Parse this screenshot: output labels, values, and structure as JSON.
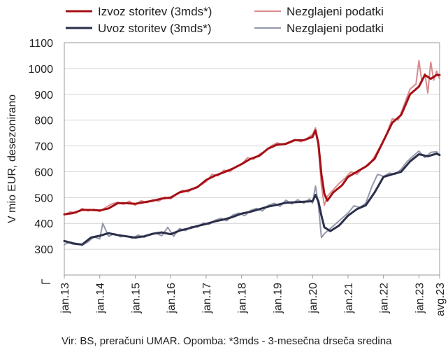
{
  "chart_data": {
    "type": "line",
    "ylabel": "V mio EUR, desezonirano",
    "xlabel": "",
    "ylim": [
      200,
      1100
    ],
    "yticks": [
      1100,
      1000,
      900,
      800,
      700,
      600,
      500,
      400,
      300
    ],
    "x_start": "2013-01",
    "x_end": "2023-08",
    "xticks": [
      {
        "label": "jan.13",
        "date": "2013-01"
      },
      {
        "label": "jan.14",
        "date": "2014-01"
      },
      {
        "label": "jan.15",
        "date": "2015-01"
      },
      {
        "label": "jan.16",
        "date": "2016-01"
      },
      {
        "label": "jan.17",
        "date": "2017-01"
      },
      {
        "label": "jan.18",
        "date": "2018-01"
      },
      {
        "label": "jan.19",
        "date": "2019-01"
      },
      {
        "label": "jan.20",
        "date": "2020-01"
      },
      {
        "label": "jan.21",
        "date": "2021-01"
      },
      {
        "label": "jan.22",
        "date": "2022-01"
      },
      {
        "label": "jan.23",
        "date": "2023-01"
      },
      {
        "label": "avg.23",
        "date": "2023-08"
      }
    ],
    "grid": true,
    "legend_position": "top",
    "source_note": "Vir: BS, preračuni UMAR. Opomba: *3mds - 3-mesečna drseča sredina",
    "series": [
      {
        "name": "Izvoz storitev (3mds*)",
        "color": "#a50f15",
        "width": 3,
        "points": [
          [
            "2013-01",
            435
          ],
          [
            "2013-04",
            440
          ],
          [
            "2013-07",
            452
          ],
          [
            "2013-10",
            452
          ],
          [
            "2014-01",
            450
          ],
          [
            "2014-04",
            458
          ],
          [
            "2014-07",
            478
          ],
          [
            "2014-10",
            478
          ],
          [
            "2015-01",
            476
          ],
          [
            "2015-04",
            482
          ],
          [
            "2015-07",
            488
          ],
          [
            "2015-10",
            496
          ],
          [
            "2016-01",
            500
          ],
          [
            "2016-04",
            520
          ],
          [
            "2016-07",
            528
          ],
          [
            "2016-10",
            540
          ],
          [
            "2017-01",
            568
          ],
          [
            "2017-04",
            585
          ],
          [
            "2017-07",
            598
          ],
          [
            "2017-10",
            612
          ],
          [
            "2018-01",
            630
          ],
          [
            "2018-04",
            650
          ],
          [
            "2018-07",
            662
          ],
          [
            "2018-10",
            690
          ],
          [
            "2019-01",
            705
          ],
          [
            "2019-04",
            708
          ],
          [
            "2019-07",
            722
          ],
          [
            "2019-10",
            722
          ],
          [
            "2020-01",
            735
          ],
          [
            "2020-02",
            760
          ],
          [
            "2020-03",
            710
          ],
          [
            "2020-04",
            590
          ],
          [
            "2020-05",
            515
          ],
          [
            "2020-06",
            488
          ],
          [
            "2020-08",
            520
          ],
          [
            "2020-11",
            548
          ],
          [
            "2021-01",
            580
          ],
          [
            "2021-04",
            600
          ],
          [
            "2021-07",
            620
          ],
          [
            "2021-10",
            650
          ],
          [
            "2022-01",
            720
          ],
          [
            "2022-04",
            790
          ],
          [
            "2022-07",
            820
          ],
          [
            "2022-10",
            900
          ],
          [
            "2023-01",
            930
          ],
          [
            "2023-03",
            975
          ],
          [
            "2023-05",
            960
          ],
          [
            "2023-07",
            975
          ],
          [
            "2023-08",
            975
          ]
        ]
      },
      {
        "name": "Nezglajeni podatki",
        "color": "#d98a8c",
        "width": 2,
        "points": [
          [
            "2013-01",
            432
          ],
          [
            "2013-03",
            445
          ],
          [
            "2013-05",
            440
          ],
          [
            "2013-07",
            458
          ],
          [
            "2013-09",
            448
          ],
          [
            "2013-11",
            455
          ],
          [
            "2014-01",
            446
          ],
          [
            "2014-03",
            462
          ],
          [
            "2014-05",
            475
          ],
          [
            "2014-07",
            482
          ],
          [
            "2014-09",
            474
          ],
          [
            "2014-11",
            486
          ],
          [
            "2015-01",
            470
          ],
          [
            "2015-03",
            488
          ],
          [
            "2015-05",
            480
          ],
          [
            "2015-07",
            492
          ],
          [
            "2015-09",
            486
          ],
          [
            "2015-11",
            502
          ],
          [
            "2016-01",
            495
          ],
          [
            "2016-03",
            515
          ],
          [
            "2016-05",
            528
          ],
          [
            "2016-07",
            522
          ],
          [
            "2016-09",
            538
          ],
          [
            "2016-11",
            548
          ],
          [
            "2017-01",
            562
          ],
          [
            "2017-03",
            590
          ],
          [
            "2017-05",
            584
          ],
          [
            "2017-07",
            606
          ],
          [
            "2017-09",
            600
          ],
          [
            "2017-11",
            620
          ],
          [
            "2018-01",
            628
          ],
          [
            "2018-03",
            655
          ],
          [
            "2018-05",
            648
          ],
          [
            "2018-07",
            668
          ],
          [
            "2018-09",
            680
          ],
          [
            "2018-11",
            700
          ],
          [
            "2019-01",
            712
          ],
          [
            "2019-03",
            705
          ],
          [
            "2019-05",
            716
          ],
          [
            "2019-07",
            725
          ],
          [
            "2019-09",
            716
          ],
          [
            "2019-11",
            728
          ],
          [
            "2020-01",
            745
          ],
          [
            "2020-02",
            770
          ],
          [
            "2020-03",
            690
          ],
          [
            "2020-04",
            545
          ],
          [
            "2020-05",
            470
          ],
          [
            "2020-06",
            505
          ],
          [
            "2020-08",
            530
          ],
          [
            "2020-10",
            555
          ],
          [
            "2020-12",
            575
          ],
          [
            "2021-02",
            600
          ],
          [
            "2021-04",
            590
          ],
          [
            "2021-06",
            615
          ],
          [
            "2021-08",
            625
          ],
          [
            "2021-10",
            660
          ],
          [
            "2021-12",
            700
          ],
          [
            "2022-02",
            745
          ],
          [
            "2022-04",
            805
          ],
          [
            "2022-06",
            800
          ],
          [
            "2022-08",
            860
          ],
          [
            "2022-10",
            920
          ],
          [
            "2022-12",
            940
          ],
          [
            "2023-01",
            1030
          ],
          [
            "2023-02",
            950
          ],
          [
            "2023-03",
            980
          ],
          [
            "2023-04",
            905
          ],
          [
            "2023-05",
            1025
          ],
          [
            "2023-06",
            955
          ],
          [
            "2023-07",
            990
          ],
          [
            "2023-08",
            960
          ]
        ]
      },
      {
        "name": "Uvoz storitev (3mds*)",
        "color": "#2b2f4a",
        "width": 3,
        "points": [
          [
            "2013-01",
            332
          ],
          [
            "2013-04",
            322
          ],
          [
            "2013-07",
            318
          ],
          [
            "2013-10",
            345
          ],
          [
            "2014-01",
            352
          ],
          [
            "2014-04",
            362
          ],
          [
            "2014-07",
            355
          ],
          [
            "2014-10",
            350
          ],
          [
            "2015-01",
            345
          ],
          [
            "2015-04",
            350
          ],
          [
            "2015-07",
            360
          ],
          [
            "2015-10",
            365
          ],
          [
            "2016-01",
            358
          ],
          [
            "2016-04",
            372
          ],
          [
            "2016-07",
            380
          ],
          [
            "2016-10",
            390
          ],
          [
            "2017-01",
            398
          ],
          [
            "2017-04",
            408
          ],
          [
            "2017-07",
            415
          ],
          [
            "2017-10",
            425
          ],
          [
            "2018-01",
            438
          ],
          [
            "2018-04",
            445
          ],
          [
            "2018-07",
            455
          ],
          [
            "2018-10",
            465
          ],
          [
            "2019-01",
            472
          ],
          [
            "2019-04",
            480
          ],
          [
            "2019-07",
            482
          ],
          [
            "2019-10",
            484
          ],
          [
            "2020-01",
            486
          ],
          [
            "2020-02",
            510
          ],
          [
            "2020-03",
            485
          ],
          [
            "2020-04",
            430
          ],
          [
            "2020-05",
            385
          ],
          [
            "2020-07",
            370
          ],
          [
            "2020-10",
            392
          ],
          [
            "2021-01",
            430
          ],
          [
            "2021-04",
            455
          ],
          [
            "2021-07",
            470
          ],
          [
            "2021-10",
            520
          ],
          [
            "2022-01",
            580
          ],
          [
            "2022-04",
            590
          ],
          [
            "2022-07",
            600
          ],
          [
            "2022-10",
            640
          ],
          [
            "2023-01",
            668
          ],
          [
            "2023-04",
            660
          ],
          [
            "2023-07",
            670
          ],
          [
            "2023-08",
            665
          ]
        ]
      },
      {
        "name": "Nezglajeni podatki",
        "color": "#9498ab",
        "width": 2,
        "points": [
          [
            "2013-01",
            318
          ],
          [
            "2013-03",
            328
          ],
          [
            "2013-05",
            322
          ],
          [
            "2013-07",
            315
          ],
          [
            "2013-09",
            328
          ],
          [
            "2013-11",
            348
          ],
          [
            "2014-01",
            340
          ],
          [
            "2014-02",
            400
          ],
          [
            "2014-04",
            350
          ],
          [
            "2014-06",
            360
          ],
          [
            "2014-08",
            348
          ],
          [
            "2014-10",
            352
          ],
          [
            "2014-12",
            342
          ],
          [
            "2015-02",
            355
          ],
          [
            "2015-04",
            346
          ],
          [
            "2015-06",
            358
          ],
          [
            "2015-08",
            362
          ],
          [
            "2015-10",
            352
          ],
          [
            "2015-12",
            385
          ],
          [
            "2016-02",
            350
          ],
          [
            "2016-04",
            380
          ],
          [
            "2016-06",
            372
          ],
          [
            "2016-08",
            388
          ],
          [
            "2016-10",
            385
          ],
          [
            "2016-12",
            402
          ],
          [
            "2017-02",
            396
          ],
          [
            "2017-04",
            412
          ],
          [
            "2017-06",
            420
          ],
          [
            "2017-08",
            410
          ],
          [
            "2017-10",
            432
          ],
          [
            "2017-12",
            440
          ],
          [
            "2018-02",
            430
          ],
          [
            "2018-04",
            450
          ],
          [
            "2018-06",
            458
          ],
          [
            "2018-08",
            448
          ],
          [
            "2018-10",
            470
          ],
          [
            "2018-12",
            478
          ],
          [
            "2019-02",
            466
          ],
          [
            "2019-04",
            490
          ],
          [
            "2019-06",
            475
          ],
          [
            "2019-08",
            492
          ],
          [
            "2019-10",
            478
          ],
          [
            "2019-12",
            495
          ],
          [
            "2020-01",
            478
          ],
          [
            "2020-02",
            545
          ],
          [
            "2020-03",
            470
          ],
          [
            "2020-04",
            345
          ],
          [
            "2020-05",
            360
          ],
          [
            "2020-07",
            380
          ],
          [
            "2020-09",
            400
          ],
          [
            "2020-11",
            420
          ],
          [
            "2021-01",
            440
          ],
          [
            "2021-03",
            468
          ],
          [
            "2021-05",
            462
          ],
          [
            "2021-07",
            478
          ],
          [
            "2021-09",
            540
          ],
          [
            "2021-11",
            590
          ],
          [
            "2022-01",
            582
          ],
          [
            "2022-03",
            595
          ],
          [
            "2022-05",
            590
          ],
          [
            "2022-07",
            610
          ],
          [
            "2022-09",
            640
          ],
          [
            "2022-11",
            660
          ],
          [
            "2023-01",
            680
          ],
          [
            "2023-03",
            655
          ],
          [
            "2023-05",
            675
          ],
          [
            "2023-07",
            678
          ],
          [
            "2023-08",
            662
          ]
        ]
      }
    ]
  }
}
